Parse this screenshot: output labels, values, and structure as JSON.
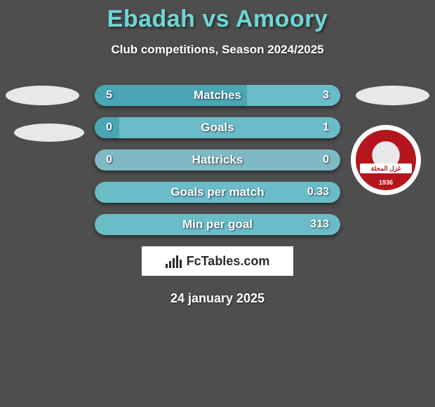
{
  "title": "Ebadah vs Amoory",
  "subtitle": "Club competitions, Season 2024/2025",
  "date": "24 january 2025",
  "branding_text": "FcTables.com",
  "colors": {
    "background": "#4e4e4e",
    "title": "#6dd6d6",
    "text": "#ffffff",
    "bar_left_accent": "#49a9b8",
    "bar_empty": "#7fb9c4",
    "bar_right_accent": "#49a9b8",
    "ellipse": "#e8e8e8",
    "logo_red": "#b5151c",
    "logo_white": "#ffffff"
  },
  "club_logo": {
    "year": "1936",
    "band_text": "غزل المحلة"
  },
  "rows": [
    {
      "label": "Matches",
      "left_value": "5",
      "right_value": "3",
      "left_fill_pct": 62,
      "right_fill_pct": 38,
      "left_color": "#4aa6b5",
      "right_color": "#6bbcc9",
      "bg_color": "#7fb9c4"
    },
    {
      "label": "Goals",
      "left_value": "0",
      "right_value": "1",
      "left_fill_pct": 10,
      "right_fill_pct": 100,
      "left_color": "#4aa6b5",
      "right_color": "#6bbcc9",
      "bg_color": "#6bbcc9"
    },
    {
      "label": "Hattricks",
      "left_value": "0",
      "right_value": "0",
      "left_fill_pct": 0,
      "right_fill_pct": 0,
      "left_color": "#4aa6b5",
      "right_color": "#6bbcc9",
      "bg_color": "#7fb9c4"
    },
    {
      "label": "Goals per match",
      "left_value": "",
      "right_value": "0.33",
      "left_fill_pct": 0,
      "right_fill_pct": 100,
      "left_color": "#4aa6b5",
      "right_color": "#6bbcc9",
      "bg_color": "#6bbcc9"
    },
    {
      "label": "Min per goal",
      "left_value": "",
      "right_value": "313",
      "left_fill_pct": 0,
      "right_fill_pct": 100,
      "left_color": "#4aa6b5",
      "right_color": "#6bbcc9",
      "bg_color": "#6bbcc9"
    }
  ]
}
